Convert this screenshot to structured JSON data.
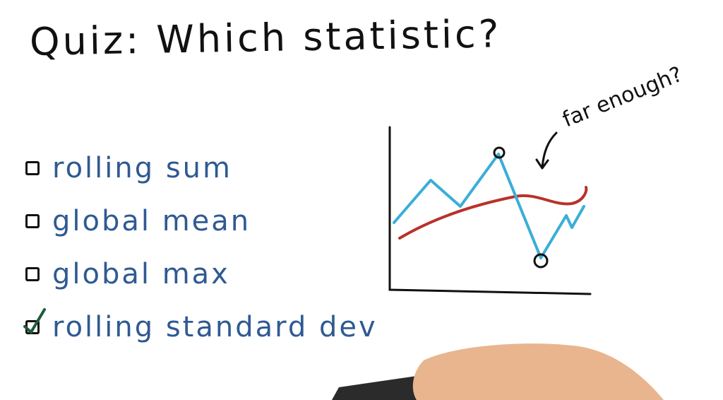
{
  "title": "Quiz: Which statistic?",
  "options": [
    {
      "label": "rolling sum",
      "checked": false
    },
    {
      "label": "global mean",
      "checked": false
    },
    {
      "label": "global max",
      "checked": false
    },
    {
      "label": "rolling standard dev",
      "checked": true
    }
  ],
  "annotation": "far enough?",
  "colors": {
    "ink": "#111111",
    "option_text": "#2f5a92",
    "price_line": "#3aaed8",
    "mean_line": "#b8322a",
    "check": "#1f5a3a"
  }
}
